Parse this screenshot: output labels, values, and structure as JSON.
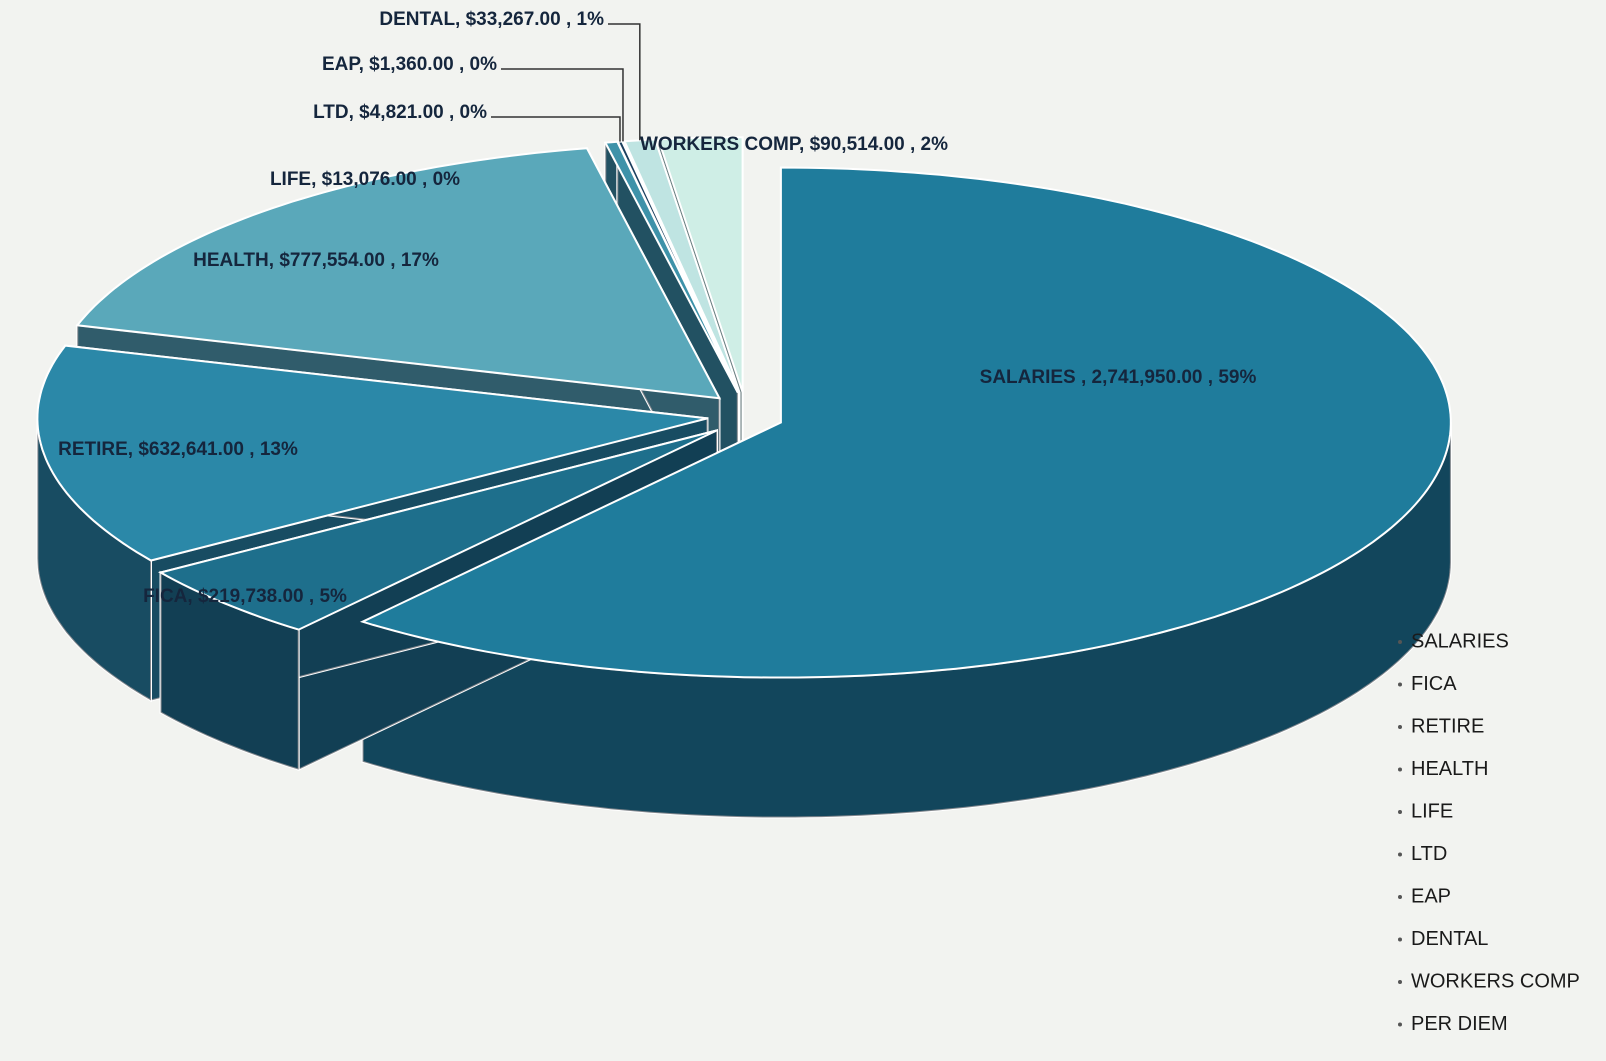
{
  "chart_data": {
    "type": "pie",
    "categories": [
      "SALARIES",
      "FICA",
      "RETIRE",
      "HEALTH",
      "LIFE",
      "LTD",
      "EAP",
      "DENTAL",
      "WORKERS COMP",
      "PER DIEM"
    ],
    "values": [
      2741950,
      219738,
      632641,
      777554,
      13076,
      4821,
      1360,
      33267,
      90514,
      null
    ],
    "value_labels": [
      "SALARIES , 2,741,950.00 , 59%",
      "FICA, $219,738.00 , 5%",
      "RETIRE, $632,641.00 , 13%",
      "HEALTH, $777,554.00 , 17%",
      "LIFE, $13,076.00 , 0%",
      "LTD, $4,821.00 , 0%",
      "EAP, $1,360.00 , 0%",
      "DENTAL, $33,267.00 , 1%",
      "WORKERS COMP, $90,514.00 , 2%",
      null
    ],
    "colors": [
      "#1f7c9c",
      "#1e6f8c",
      "#2b88a8",
      "#5aa8ba",
      "#3e92a9",
      "#1b3f5e",
      "#9fd2d6",
      "#bfe4e2",
      "#cfeee6",
      "#e0f2ee"
    ],
    "legend": "bottom-right"
  }
}
